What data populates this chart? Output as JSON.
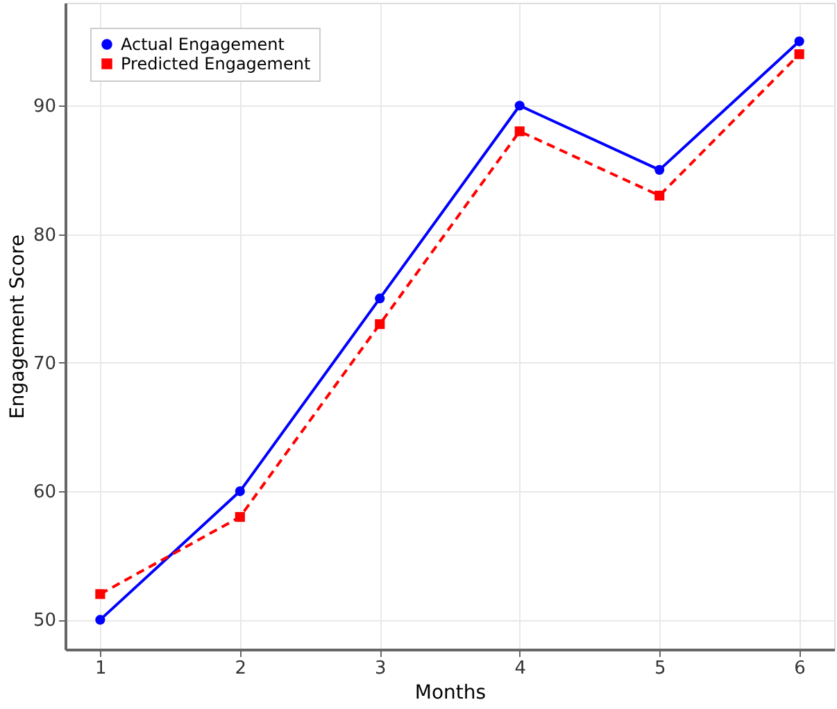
{
  "chart_data": {
    "type": "line",
    "xlabel": "Months",
    "ylabel": "Engagement Score",
    "x": [
      1,
      2,
      3,
      4,
      5,
      6
    ],
    "series": [
      {
        "name": "Actual Engagement",
        "color": "#0000ff",
        "values": [
          50,
          60,
          75,
          90,
          85,
          95
        ],
        "marker": "circle",
        "line_style": "solid"
      },
      {
        "name": "Predicted Engagement",
        "color": "#ff0000",
        "values": [
          52,
          58,
          73,
          88,
          83,
          94
        ],
        "marker": "square",
        "line_style": "dashed"
      }
    ],
    "xlim": [
      0.75,
      6.25
    ],
    "xticks": [
      1,
      2,
      3,
      4,
      5,
      6
    ],
    "ylim": [
      47.7,
      98
    ],
    "yticks": [
      50,
      60,
      70,
      80,
      90
    ],
    "grid": true,
    "legend": "top left"
  }
}
